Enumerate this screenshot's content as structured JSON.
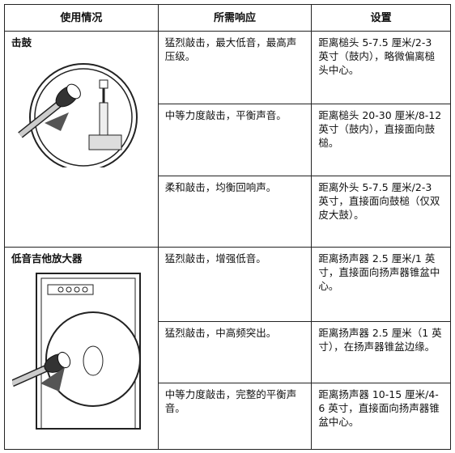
{
  "table": {
    "header": [
      "使用情况",
      "所需响应",
      "设置"
    ],
    "groups": [
      {
        "label": "击鼓",
        "rows": [
          {
            "response": "猛烈敲击，最大低音，最高声压级。",
            "setting": "距离槌头 5-7.5 厘米/2-3 英寸（鼓内），略微偏离槌头中心。"
          },
          {
            "response": "中等力度敲击，平衡声音。",
            "setting": "距离槌头 20-30 厘米/8-12 英寸（鼓内），直接面向鼓槌。"
          },
          {
            "response": "柔和敲击，均衡回响声。",
            "setting": "距离外头 5-7.5 厘米/2-3 英寸，直接面向鼓槌（仅双皮大鼓）。"
          }
        ]
      },
      {
        "label": "低音吉他放大器",
        "rows": [
          {
            "response": "猛烈敲击，增强低音。",
            "setting": "距离扬声器 2.5 厘米/1 英寸，直接面向扬声器锥盆中心。"
          },
          {
            "response": "猛烈敲击，中高频突出。",
            "setting": "距离扬声器 2.5 厘米（1 英寸），在扬声器锥盆边缘。"
          },
          {
            "response": "中等力度敲击，完整的平衡声音。",
            "setting": "距离扬声器 10-15 厘米/4-6 英寸，直接面向扬声器锥盆中心。"
          }
        ]
      }
    ]
  }
}
